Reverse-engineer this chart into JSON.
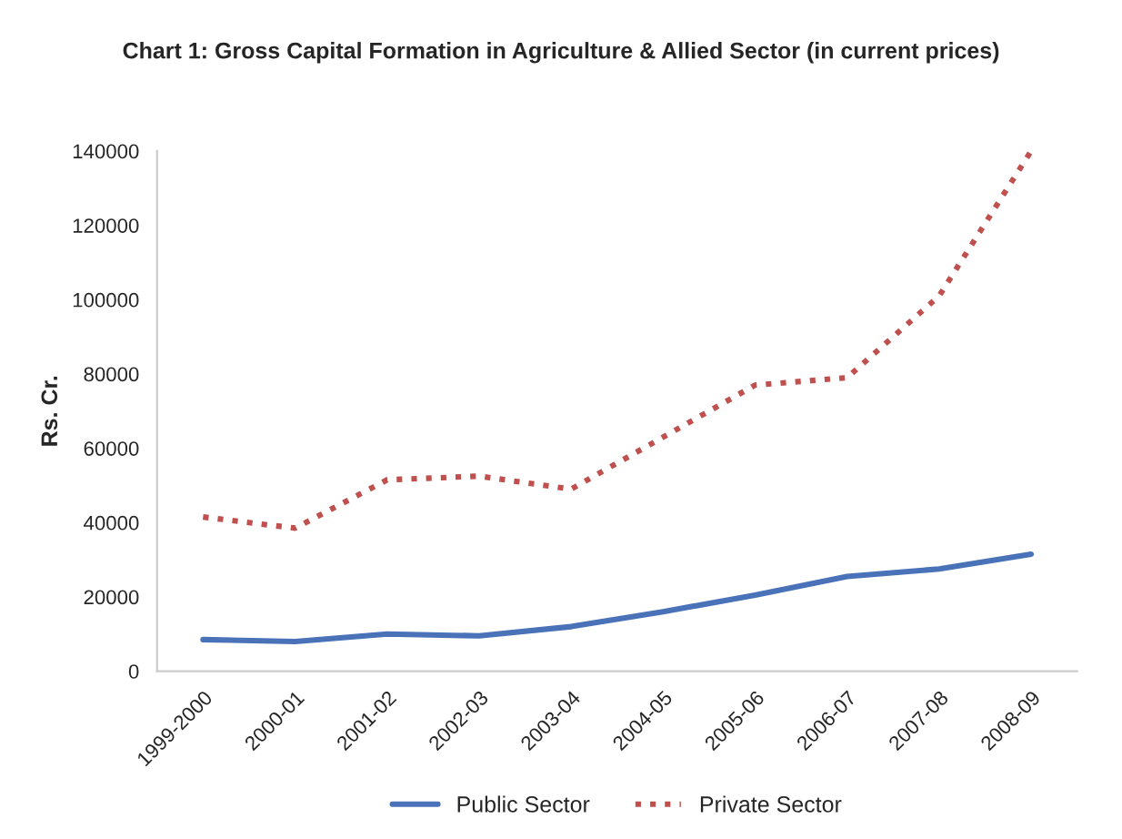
{
  "chart_data": {
    "type": "line",
    "title": "Chart 1: Gross Capital Formation in Agriculture & Allied Sector (in current prices)",
    "ylabel": "Rs. Cr.",
    "categories": [
      "1999-2000",
      "2000-01",
      "2001-02",
      "2002-03",
      "2003-04",
      "2004-05",
      "2005-06",
      "2006-07",
      "2007-08",
      "2008-09"
    ],
    "series": [
      {
        "name": "Public Sector",
        "color": "#4a72b8",
        "line_style": "solid",
        "values": [
          8500,
          8000,
          10000,
          9500,
          12000,
          16000,
          20500,
          25500,
          27500,
          31500
        ]
      },
      {
        "name": "Private Sector",
        "color": "#c0504d",
        "line_style": "dotted",
        "values": [
          41500,
          38500,
          51500,
          52500,
          49000,
          63000,
          77000,
          79000,
          101000,
          140000
        ]
      }
    ],
    "ylim": [
      0,
      140000
    ],
    "yticks": [
      0,
      20000,
      40000,
      60000,
      80000,
      100000,
      120000,
      140000
    ],
    "grid": false,
    "legend": "bottom"
  }
}
